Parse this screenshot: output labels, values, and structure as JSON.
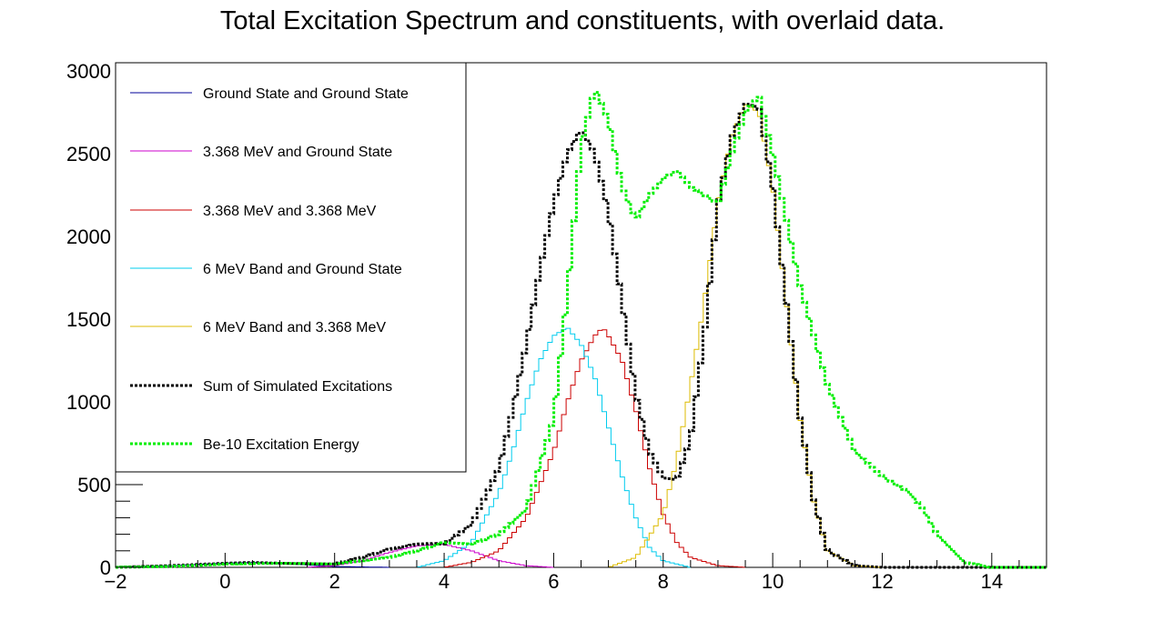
{
  "chart_data": {
    "type": "line",
    "title": "Total Excitation Spectrum and constituents, with overlaid data.",
    "xlabel": "",
    "ylabel": "",
    "xlim": [
      -2,
      15
    ],
    "ylim": [
      0,
      3050
    ],
    "x_ticks": [
      -2,
      0,
      2,
      4,
      6,
      8,
      10,
      12,
      14
    ],
    "x_tick_labels": [
      "−2",
      "0",
      "2",
      "4",
      "6",
      "8",
      "10",
      "12",
      "14"
    ],
    "y_ticks": [
      0,
      500,
      1000,
      1500,
      2000,
      2500,
      3000
    ],
    "y_tick_labels": [
      "0",
      "500",
      "1000",
      "1500",
      "2000",
      "2500",
      "3000"
    ],
    "grid": false,
    "legend_position": "top-left",
    "series": [
      {
        "name": "Ground State and Ground State",
        "color": "#000099",
        "style": "solid",
        "x": [
          -2,
          -1,
          0,
          0.5,
          1,
          2,
          3
        ],
        "y": [
          0,
          10,
          25,
          30,
          25,
          5,
          0
        ]
      },
      {
        "name": "3.368 MeV and Ground State",
        "color": "#cc00cc",
        "style": "solid",
        "x": [
          1.5,
          2,
          2.5,
          3,
          3.5,
          4,
          4.5,
          5,
          5.5,
          6
        ],
        "y": [
          0,
          10,
          40,
          90,
          130,
          140,
          100,
          40,
          10,
          0
        ]
      },
      {
        "name": "3.368 MeV and 3.368 MeV",
        "color": "#cc0000",
        "style": "solid",
        "x": [
          4,
          4.5,
          5,
          5.5,
          6,
          6.25,
          6.5,
          6.75,
          6.9,
          7,
          7.25,
          7.5,
          7.75,
          8,
          8.25,
          8.5,
          9,
          9.5
        ],
        "y": [
          0,
          30,
          100,
          300,
          700,
          1000,
          1250,
          1400,
          1450,
          1400,
          1250,
          950,
          600,
          320,
          150,
          60,
          10,
          0
        ]
      },
      {
        "name": "6 MeV Band and Ground State",
        "color": "#00ccee",
        "style": "solid",
        "x": [
          3.5,
          4,
          4.5,
          5,
          5.25,
          5.5,
          5.75,
          6,
          6.25,
          6.5,
          6.75,
          7,
          7.25,
          7.5,
          7.75,
          8,
          8.5
        ],
        "y": [
          0,
          40,
          150,
          450,
          700,
          1000,
          1250,
          1400,
          1450,
          1350,
          1150,
          850,
          550,
          300,
          120,
          40,
          0
        ]
      },
      {
        "name": "6 MeV Band and 3.368 MeV",
        "color": "#ddbb00",
        "style": "solid",
        "x": [
          7,
          7.5,
          8,
          8.25,
          8.5,
          8.75,
          9,
          9.25,
          9.5,
          9.75,
          10,
          10.25,
          10.5,
          10.75,
          11,
          11.5,
          12
        ],
        "y": [
          0,
          60,
          320,
          650,
          1100,
          1600,
          2200,
          2600,
          2800,
          2750,
          2300,
          1600,
          900,
          400,
          100,
          10,
          0
        ]
      },
      {
        "name": "Sum of Simulated Excitations",
        "color": "#000000",
        "style": "dashed",
        "x": [
          -2,
          -1,
          0,
          0.5,
          1,
          2,
          2.5,
          3,
          3.5,
          3.8,
          4,
          4.5,
          5,
          5.25,
          5.5,
          5.75,
          6,
          6.25,
          6.5,
          6.75,
          7,
          7.25,
          7.5,
          7.75,
          8,
          8.25,
          8.5,
          8.75,
          9,
          9.25,
          9.5,
          9.75,
          10,
          10.25,
          10.5,
          10.75,
          11,
          11.5,
          12,
          15
        ],
        "y": [
          0,
          10,
          25,
          30,
          25,
          20,
          60,
          110,
          140,
          145,
          140,
          260,
          600,
          950,
          1350,
          1800,
          2200,
          2500,
          2650,
          2500,
          2150,
          1600,
          1050,
          700,
          540,
          530,
          780,
          1400,
          2200,
          2600,
          2800,
          2780,
          2300,
          1600,
          900,
          400,
          100,
          10,
          0,
          0
        ]
      },
      {
        "name": "Be-10 Excitation Energy",
        "color": "#00ee00",
        "style": "dashed",
        "x": [
          -2,
          -1,
          0,
          1,
          2,
          3,
          3.5,
          4,
          4.5,
          5,
          5.5,
          6,
          6.25,
          6.5,
          6.75,
          7,
          7.25,
          7.5,
          7.75,
          8,
          8.25,
          8.5,
          8.75,
          9,
          9.25,
          9.5,
          9.75,
          10,
          10.25,
          10.5,
          10.75,
          11,
          11.5,
          12,
          12.5,
          12.75,
          13,
          13.5,
          14,
          15
        ],
        "y": [
          0,
          5,
          20,
          25,
          20,
          60,
          100,
          150,
          140,
          200,
          350,
          900,
          1650,
          2550,
          2900,
          2700,
          2300,
          2100,
          2250,
          2350,
          2400,
          2300,
          2250,
          2200,
          2500,
          2750,
          2850,
          2500,
          2100,
          1700,
          1400,
          1100,
          700,
          550,
          450,
          350,
          200,
          30,
          0,
          0
        ]
      }
    ]
  }
}
